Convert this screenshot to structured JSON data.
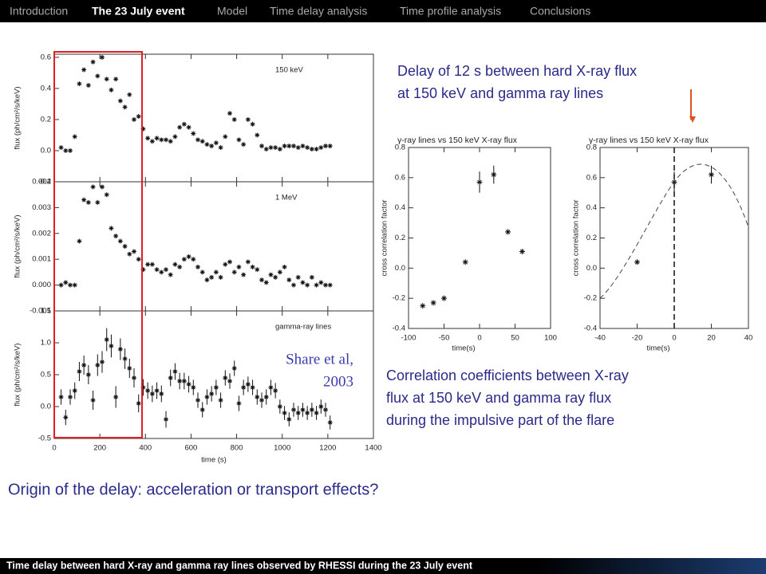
{
  "nav": {
    "items": [
      "Introduction",
      "The 23 July event",
      "Model",
      "Time delay analysis",
      "Time profile analysis",
      "Conclusions"
    ],
    "active_index": 1
  },
  "left_figure": {
    "xlabel": "time (s)",
    "xlim": [
      0,
      1400
    ],
    "xticks": [
      0,
      200,
      400,
      600,
      800,
      1000,
      1200,
      1400
    ],
    "x": [
      30,
      50,
      70,
      90,
      110,
      130,
      150,
      170,
      190,
      210,
      230,
      250,
      270,
      290,
      310,
      330,
      350,
      370,
      390,
      410,
      430,
      450,
      470,
      490,
      510,
      530,
      550,
      570,
      590,
      610,
      630,
      650,
      670,
      690,
      710,
      730,
      750,
      770,
      790,
      810,
      830,
      850,
      870,
      890,
      910,
      930,
      950,
      970,
      990,
      1010,
      1030,
      1050,
      1070,
      1090,
      1110,
      1130,
      1150,
      1170,
      1190,
      1210
    ],
    "panels": [
      {
        "label": "150 keV",
        "ylabel": "flux (ph/cm²/s/keV)",
        "ylim": [
          -0.2,
          0.62
        ],
        "yticks": [
          {
            "value": -0.2,
            "label": "-0.2"
          },
          {
            "value": 0,
            "label": "0.0"
          },
          {
            "value": 0.2,
            "label": "0.2"
          },
          {
            "value": 0.4,
            "label": "0.4"
          },
          {
            "value": 0.6,
            "label": "0.6"
          }
        ],
        "values": [
          0.02,
          0.0,
          0.0,
          0.09,
          0.43,
          0.52,
          0.42,
          0.57,
          0.48,
          0.6,
          0.46,
          0.39,
          0.46,
          0.32,
          0.28,
          0.36,
          0.2,
          0.22,
          0.14,
          0.08,
          0.06,
          0.08,
          0.07,
          0.07,
          0.06,
          0.09,
          0.15,
          0.17,
          0.15,
          0.11,
          0.07,
          0.06,
          0.04,
          0.03,
          0.05,
          0.02,
          0.09,
          0.24,
          0.2,
          0.07,
          0.04,
          0.2,
          0.17,
          0.1,
          0.03,
          0.01,
          0.02,
          0.02,
          0.01,
          0.03,
          0.03,
          0.03,
          0.02,
          0.03,
          0.02,
          0.01,
          0.01,
          0.02,
          0.03,
          0.03
        ]
      },
      {
        "label": "1 MeV",
        "ylabel": "flux (ph/cm²/s/keV)",
        "ylim": [
          -0.001,
          0.004
        ],
        "yticks": [
          {
            "value": -0.001,
            "label": "-0.001"
          },
          {
            "value": 0,
            "label": "0.000"
          },
          {
            "value": 0.001,
            "label": "0.001"
          },
          {
            "value": 0.002,
            "label": "0.002"
          },
          {
            "value": 0.003,
            "label": "0.003"
          },
          {
            "value": 0.004,
            "label": "0.004"
          }
        ],
        "values": [
          0.0,
          0.0001,
          0.0,
          0.0,
          0.0017,
          0.0033,
          0.0032,
          0.0038,
          0.0032,
          0.0038,
          0.0035,
          0.0022,
          0.0019,
          0.0017,
          0.0015,
          0.0012,
          0.0013,
          0.001,
          0.0006,
          0.0008,
          0.0008,
          0.0006,
          0.0005,
          0.0006,
          0.0004,
          0.0008,
          0.0007,
          0.001,
          0.0011,
          0.001,
          0.0007,
          0.0005,
          0.0002,
          0.0003,
          0.0005,
          0.0003,
          0.0008,
          0.0009,
          0.0005,
          0.0007,
          0.0004,
          0.0009,
          0.0007,
          0.0006,
          0.0002,
          0.0001,
          0.0004,
          0.0003,
          0.0005,
          0.0007,
          0.0002,
          0.0,
          0.0003,
          0.0001,
          0.0,
          0.0003,
          0.0,
          0.0001,
          0.0,
          0.0
        ]
      },
      {
        "label": "gamma-ray lines",
        "ylabel": "flux (ph/cm²/s/keV)",
        "ylim": [
          -0.5,
          1.5
        ],
        "yticks": [
          {
            "value": -0.5,
            "label": "-0.5"
          },
          {
            "value": 0,
            "label": "0.0"
          },
          {
            "value": 0.5,
            "label": "0.5"
          },
          {
            "value": 1,
            "label": "1.0"
          },
          {
            "value": 1.5,
            "label": "1.5"
          }
        ],
        "values": [
          0.15,
          -0.17,
          0.15,
          0.25,
          0.55,
          0.65,
          0.5,
          0.1,
          0.65,
          0.7,
          1.05,
          0.95,
          0.15,
          0.9,
          0.75,
          0.6,
          0.45,
          0.05,
          0.3,
          0.25,
          0.2,
          0.25,
          0.2,
          -0.2,
          0.45,
          0.55,
          0.4,
          0.4,
          0.35,
          0.3,
          0.1,
          -0.05,
          0.15,
          0.2,
          0.3,
          0.1,
          0.45,
          0.4,
          0.6,
          0.05,
          0.3,
          0.35,
          0.3,
          0.15,
          0.1,
          0.15,
          0.3,
          0.25,
          0.0,
          -0.1,
          -0.2,
          -0.05,
          -0.1,
          -0.05,
          -0.1,
          -0.05,
          -0.1,
          0.0,
          -0.05,
          -0.25
        ],
        "errors": [
          0.12,
          0.12,
          0.12,
          0.13,
          0.15,
          0.15,
          0.15,
          0.15,
          0.17,
          0.17,
          0.18,
          0.18,
          0.17,
          0.17,
          0.16,
          0.15,
          0.15,
          0.14,
          0.13,
          0.13,
          0.13,
          0.13,
          0.13,
          0.13,
          0.13,
          0.13,
          0.13,
          0.13,
          0.13,
          0.12,
          0.12,
          0.12,
          0.12,
          0.12,
          0.12,
          0.12,
          0.12,
          0.12,
          0.12,
          0.12,
          0.12,
          0.12,
          0.12,
          0.12,
          0.12,
          0.12,
          0.12,
          0.12,
          0.11,
          0.11,
          0.11,
          0.11,
          0.11,
          0.11,
          0.11,
          0.11,
          0.11,
          0.11,
          0.11,
          0.11
        ]
      }
    ]
  },
  "citation": [
    "Share et al,",
    "2003"
  ],
  "correlation_figures": {
    "title": "γ-ray lines vs 150 keV X-ray flux",
    "ylabel": "cross correlation factor",
    "xlabel": "time(s)",
    "ylim": [
      -0.4,
      0.8
    ],
    "yticks": [
      {
        "value": -0.4,
        "label": "-0.4"
      },
      {
        "value": -0.2,
        "label": "-0.2"
      },
      {
        "value": 0,
        "label": "0.0"
      },
      {
        "value": 0.2,
        "label": "0.2"
      },
      {
        "value": 0.4,
        "label": "0.4"
      },
      {
        "value": 0.6,
        "label": "0.6"
      },
      {
        "value": 0.8,
        "label": "0.8"
      }
    ],
    "panels": [
      {
        "xlim": [
          -100,
          100
        ],
        "xticks": [
          -100,
          -50,
          0,
          50,
          100
        ],
        "x": [
          -80,
          -65,
          -50,
          -20,
          0,
          20,
          40,
          60
        ],
        "values": [
          -0.25,
          -0.23,
          -0.2,
          0.04,
          0.57,
          0.62,
          0.24,
          0.11
        ],
        "errors": [
          0,
          0,
          0,
          0,
          0.07,
          0.06,
          0,
          0
        ]
      },
      {
        "xlim": [
          -40,
          40
        ],
        "xticks": [
          -40,
          -20,
          0,
          20,
          40
        ],
        "x": [
          -20,
          0,
          20
        ],
        "values": [
          0.04,
          0.57,
          0.62
        ],
        "errors": [
          0,
          0.07,
          0.06
        ]
      }
    ]
  },
  "annotations": {
    "delay": [
      "Delay of 12 s between hard X-ray flux",
      "at 150 keV and gamma ray lines"
    ],
    "correlation": [
      "Correlation coefficients between X-ray",
      "flux at 150 keV and gamma ray flux",
      "during the impulsive part of the flare"
    ],
    "question": "Origin of the delay: acceleration or transport effects?"
  },
  "footer": "Time delay between hard X-ray and gamma ray lines observed by RHESSI during the 23 July event"
}
